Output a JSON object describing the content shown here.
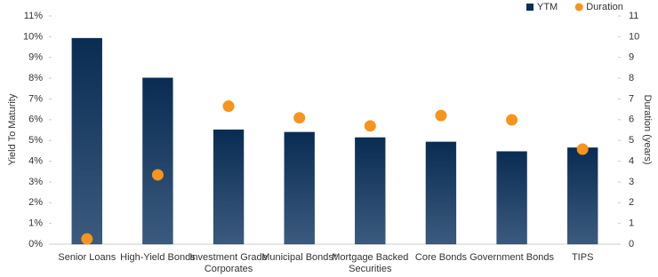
{
  "chart_data": {
    "type": "bar",
    "categories": [
      "Senior Loans",
      "High-Yield Bonds",
      "Investment Grade\nCorporates",
      "Municipal Bonds*",
      "Mortgage Backed\nSecurities",
      "Core Bonds",
      "Government Bonds",
      "TIPS"
    ],
    "series": [
      {
        "name": "YTM",
        "type": "bar",
        "color": "#0b2f57",
        "values": [
          9.93,
          8.02,
          5.52,
          5.4,
          5.14,
          4.93,
          4.47,
          4.65
        ]
      },
      {
        "name": "Duration",
        "type": "scatter",
        "axis": "y2",
        "color": "#f7941d",
        "values": [
          0.25,
          3.34,
          6.65,
          6.09,
          5.7,
          6.2,
          5.99,
          4.58
        ]
      }
    ],
    "y_label": "Yield To Maturity",
    "y2_label": "Duration (years)",
    "ylim": [
      0,
      11
    ],
    "yticks": [
      {
        "value": 0,
        "label": "0%"
      },
      {
        "value": 1,
        "label": "1%"
      },
      {
        "value": 2,
        "label": "2%"
      },
      {
        "value": 3,
        "label": "3%"
      },
      {
        "value": 4,
        "label": "4%"
      },
      {
        "value": 5,
        "label": "5%"
      },
      {
        "value": 6,
        "label": "6%"
      },
      {
        "value": 7,
        "label": "7%"
      },
      {
        "value": 8,
        "label": "8%"
      },
      {
        "value": 9,
        "label": "9%"
      },
      {
        "value": 10,
        "label": "10%"
      },
      {
        "value": 11,
        "label": "11%"
      }
    ],
    "y2lim": [
      0,
      11
    ],
    "y2ticks": [
      0,
      1,
      2,
      3,
      4,
      5,
      6,
      7,
      8,
      9,
      10,
      11
    ],
    "grid": false,
    "legend": "top-right"
  }
}
